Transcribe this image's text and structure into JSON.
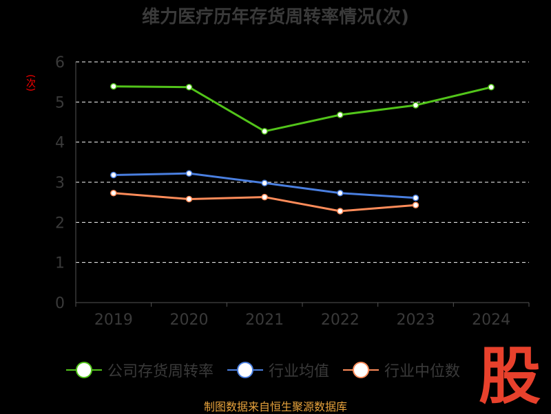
{
  "title": "维力医疗历年存货周转率情况(次)",
  "ylabel": "(次)",
  "source": "制图数据来自恒生聚源数据库",
  "watermark_text": "股",
  "colors": {
    "background": "#000000",
    "company": "#52c41a",
    "industry_avg": "#4a7fe0",
    "industry_median": "#ff8c5a",
    "grid": "#ffffff",
    "axis": "#555555",
    "watermark": "#e8412c"
  },
  "chart_data": {
    "type": "line",
    "title": "维力医疗历年存货周转率情况(次)",
    "xlabel": "",
    "ylabel": "(次)",
    "categories": [
      "2019",
      "2020",
      "2021",
      "2022",
      "2023",
      "2024"
    ],
    "ylim": [
      0,
      6
    ],
    "yticks": [
      "0",
      "1",
      "2",
      "3",
      "4",
      "5",
      "6"
    ],
    "grid": true,
    "legend_position": "bottom",
    "series": [
      {
        "name": "公司存货周转率",
        "color": "#52c41a",
        "values": [
          5.39,
          5.37,
          4.27,
          4.68,
          4.92,
          5.37
        ]
      },
      {
        "name": "行业均值",
        "color": "#4a7fe0",
        "values": [
          3.18,
          3.22,
          2.98,
          2.73,
          2.61,
          null
        ]
      },
      {
        "name": "行业中位数",
        "color": "#ff8c5a",
        "values": [
          2.73,
          2.58,
          2.63,
          2.28,
          2.43,
          null
        ]
      }
    ]
  }
}
